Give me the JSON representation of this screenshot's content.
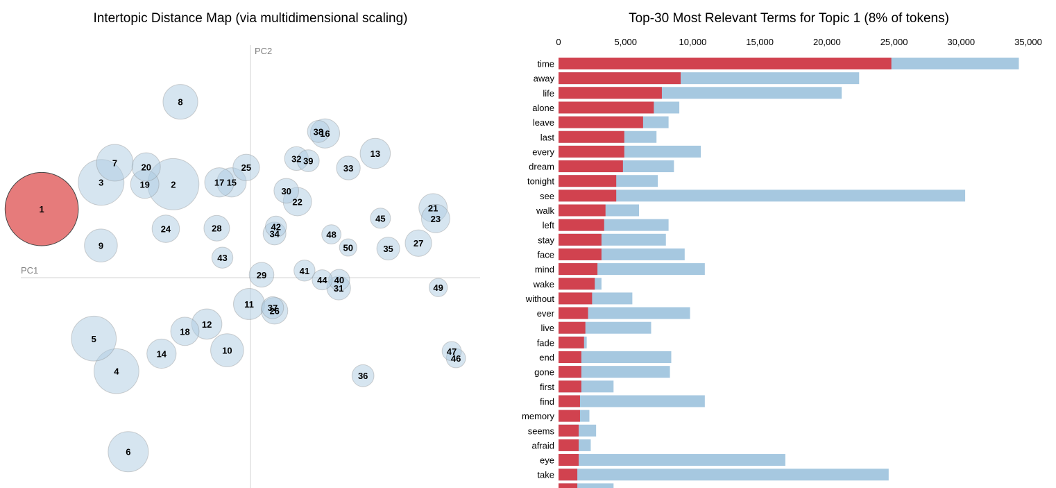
{
  "mds_panel": {
    "title": "Intertopic Distance Map (via multidimensional scaling)",
    "x_axis_label": "PC1",
    "y_axis_label": "PC2",
    "selected_topic": "1"
  },
  "bar_panel": {
    "title": "Top-30 Most Relevant Terms for Topic 1 (8% of tokens)"
  },
  "colors": {
    "selected_topic_fill": "#e05a5a",
    "topic_fill": "#aecbe2",
    "circle_stroke": "#808080",
    "topic_term_bar": "#d1424f",
    "overall_term_bar": "#a6c8e0",
    "axis_line": "#d3d3d3",
    "axis_text": "#808080"
  },
  "chart_data": [
    {
      "type": "scatter",
      "title": "Intertopic Distance Map (via multidimensional scaling)",
      "xlabel": "PC1",
      "ylabel": "PC2",
      "xlim": [
        -1,
        1
      ],
      "ylim": [
        -1,
        1
      ],
      "grid": false,
      "series": [
        {
          "points": [
            {
              "label": "1",
              "x": -0.885,
              "y": 0.377,
              "size": 8.0,
              "highlight": true
            },
            {
              "label": "2",
              "x": -0.327,
              "y": 0.514,
              "size": 5.6
            },
            {
              "label": "3",
              "x": -0.633,
              "y": 0.524,
              "size": 5.0
            },
            {
              "label": "4",
              "x": -0.568,
              "y": -0.514,
              "size": 4.9
            },
            {
              "label": "5",
              "x": -0.664,
              "y": -0.335,
              "size": 4.9
            },
            {
              "label": "6",
              "x": -0.518,
              "y": -0.957,
              "size": 4.4
            },
            {
              "label": "7",
              "x": -0.575,
              "y": 0.632,
              "size": 4.0
            },
            {
              "label": "8",
              "x": -0.297,
              "y": 0.967,
              "size": 3.8
            },
            {
              "label": "9",
              "x": -0.634,
              "y": 0.177,
              "size": 3.6
            },
            {
              "label": "10",
              "x": -0.099,
              "y": -0.399,
              "size": 3.6
            },
            {
              "label": "11",
              "x": -0.006,
              "y": -0.145,
              "size": 3.4
            },
            {
              "label": "12",
              "x": -0.185,
              "y": -0.255,
              "size": 3.3
            },
            {
              "label": "13",
              "x": 0.529,
              "y": 0.683,
              "size": 3.3
            },
            {
              "label": "14",
              "x": -0.377,
              "y": -0.418,
              "size": 3.2
            },
            {
              "label": "15",
              "x": -0.08,
              "y": 0.524,
              "size": 3.2
            },
            {
              "label": "16",
              "x": 0.316,
              "y": 0.793,
              "size": 3.2
            },
            {
              "label": "17",
              "x": -0.132,
              "y": 0.524,
              "size": 3.2
            },
            {
              "label": "18",
              "x": -0.278,
              "y": -0.295,
              "size": 3.1
            },
            {
              "label": "19",
              "x": -0.448,
              "y": 0.514,
              "size": 3.1
            },
            {
              "label": "20",
              "x": -0.442,
              "y": 0.609,
              "size": 3.1
            },
            {
              "label": "21",
              "x": 0.774,
              "y": 0.384,
              "size": 3.1
            },
            {
              "label": "22",
              "x": 0.199,
              "y": 0.418,
              "size": 3.1
            },
            {
              "label": "23",
              "x": 0.785,
              "y": 0.325,
              "size": 3.1
            },
            {
              "label": "24",
              "x": -0.359,
              "y": 0.269,
              "size": 3.0
            },
            {
              "label": "25",
              "x": -0.018,
              "y": 0.606,
              "size": 2.9
            },
            {
              "label": "26",
              "x": 0.102,
              "y": -0.182,
              "size": 2.9
            },
            {
              "label": "27",
              "x": 0.712,
              "y": 0.19,
              "size": 2.9
            },
            {
              "label": "28",
              "x": -0.143,
              "y": 0.272,
              "size": 2.8
            },
            {
              "label": "29",
              "x": 0.047,
              "y": 0.016,
              "size": 2.7
            },
            {
              "label": "30",
              "x": 0.152,
              "y": 0.478,
              "size": 2.7
            },
            {
              "label": "31",
              "x": 0.374,
              "y": -0.057,
              "size": 2.6
            },
            {
              "label": "32",
              "x": 0.195,
              "y": 0.655,
              "size": 2.6
            },
            {
              "label": "33",
              "x": 0.415,
              "y": 0.603,
              "size": 2.6
            },
            {
              "label": "34",
              "x": 0.102,
              "y": 0.243,
              "size": 2.5
            },
            {
              "label": "35",
              "x": 0.584,
              "y": 0.16,
              "size": 2.5
            },
            {
              "label": "36",
              "x": 0.477,
              "y": -0.539,
              "size": 2.4
            },
            {
              "label": "37",
              "x": 0.094,
              "y": -0.165,
              "size": 2.4
            },
            {
              "label": "38",
              "x": 0.288,
              "y": 0.804,
              "size": 2.4
            },
            {
              "label": "39",
              "x": 0.245,
              "y": 0.643,
              "size": 2.4
            },
            {
              "label": "40",
              "x": 0.376,
              "y": -0.012,
              "size": 2.3
            },
            {
              "label": "41",
              "x": 0.229,
              "y": 0.039,
              "size": 2.3
            },
            {
              "label": "42",
              "x": 0.108,
              "y": 0.281,
              "size": 2.3
            },
            {
              "label": "43",
              "x": -0.119,
              "y": 0.11,
              "size": 2.3
            },
            {
              "label": "44",
              "x": 0.304,
              "y": -0.012,
              "size": 2.2
            },
            {
              "label": "45",
              "x": 0.551,
              "y": 0.327,
              "size": 2.2
            },
            {
              "label": "46",
              "x": 0.871,
              "y": -0.443,
              "size": 2.1
            },
            {
              "label": "47",
              "x": 0.853,
              "y": -0.404,
              "size": 2.1
            },
            {
              "label": "48",
              "x": 0.343,
              "y": 0.238,
              "size": 2.1
            },
            {
              "label": "49",
              "x": 0.796,
              "y": -0.054,
              "size": 2.0
            },
            {
              "label": "50",
              "x": 0.414,
              "y": 0.166,
              "size": 1.9
            }
          ]
        }
      ]
    },
    {
      "type": "bar",
      "orientation": "horizontal",
      "title": "Top-30 Most Relevant Terms for Topic 1 (8% of tokens)",
      "xlim": [
        0,
        35000
      ],
      "x_ticks": [
        0,
        5000,
        10000,
        15000,
        20000,
        25000,
        30000,
        35000
      ],
      "x_tick_labels": [
        "0",
        "5,000",
        "10,000",
        "15,000",
        "20,000",
        "25,000",
        "30,000",
        "35,000"
      ],
      "grid": false,
      "categories": [
        "time",
        "away",
        "life",
        "alone",
        "leave",
        "last",
        "every",
        "dream",
        "tonight",
        "see",
        "walk",
        "left",
        "stay",
        "face",
        "mind",
        "wake",
        "without",
        "ever",
        "live",
        "fade",
        "end",
        "gone",
        "first",
        "find",
        "memory",
        "seems",
        "afraid",
        "eye",
        "take",
        ""
      ],
      "series": [
        {
          "values": [
            34300,
            22400,
            21100,
            9000,
            8200,
            7300,
            10600,
            8600,
            7400,
            30300,
            6000,
            8200,
            8000,
            9400,
            10900,
            3200,
            5500,
            9800,
            6900,
            2100,
            8400,
            8300,
            4100,
            10900,
            2300,
            2800,
            2400,
            16900,
            24600,
            4100
          ]
        },
        {
          "values": [
            24800,
            9100,
            7700,
            7100,
            6300,
            4900,
            4900,
            4800,
            4300,
            4300,
            3500,
            3400,
            3200,
            3200,
            2900,
            2700,
            2500,
            2200,
            2000,
            1900,
            1700,
            1700,
            1700,
            1600,
            1600,
            1500,
            1500,
            1500,
            1400,
            1400
          ]
        }
      ]
    }
  ]
}
